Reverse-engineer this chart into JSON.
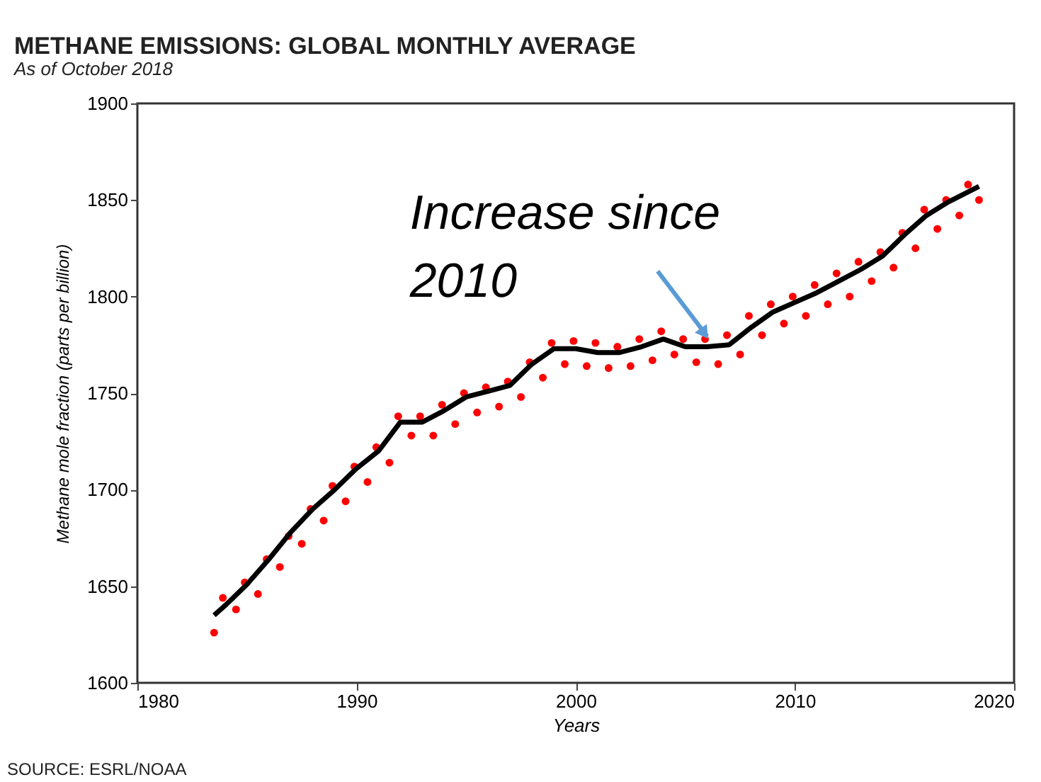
{
  "chart_data": {
    "type": "line",
    "title": "METHANE EMISSIONS: GLOBAL MONTHLY AVERAGE",
    "subtitle": "As of October 2018",
    "xlabel": "Years",
    "ylabel": "Methane mole fraction (parts per billion)",
    "xlim": [
      1980,
      2020
    ],
    "xticks": [
      1980,
      1990,
      2000,
      2010,
      2020
    ],
    "ylim": [
      1600,
      1900
    ],
    "yticks": [
      1600,
      1650,
      1700,
      1750,
      1800,
      1850,
      1900
    ],
    "grid": false,
    "annotations": [
      {
        "text": "Increase since 2010",
        "x": 2006,
        "y": 1775
      },
      "SOURCE: ESRL/NOAA"
    ],
    "series": [
      {
        "type": "scatter",
        "color": "#ff0000",
        "marker": "circle",
        "x": [
          1983.5,
          1983.9,
          1984.5,
          1984.9,
          1985.5,
          1985.9,
          1986.5,
          1986.9,
          1987.5,
          1987.9,
          1988.5,
          1988.9,
          1989.5,
          1989.9,
          1990.5,
          1990.9,
          1991.5,
          1991.9,
          1992.5,
          1992.9,
          1993.5,
          1993.9,
          1994.5,
          1994.9,
          1995.5,
          1995.9,
          1996.5,
          1996.9,
          1997.5,
          1997.9,
          1998.5,
          1998.9,
          1999.5,
          1999.9,
          2000.5,
          2000.9,
          2001.5,
          2001.9,
          2002.5,
          2002.9,
          2003.5,
          2003.9,
          2004.5,
          2004.9,
          2005.5,
          2005.9,
          2006.5,
          2006.9,
          2007.5,
          2007.9,
          2008.5,
          2008.9,
          2009.5,
          2009.9,
          2010.5,
          2010.9,
          2011.5,
          2011.9,
          2012.5,
          2012.9,
          2013.5,
          2013.9,
          2014.5,
          2014.9,
          2015.5,
          2015.9,
          2016.5,
          2016.9,
          2017.5,
          2017.9,
          2018.4
        ],
        "values": [
          1626,
          1644,
          1638,
          1652,
          1646,
          1664,
          1660,
          1676,
          1672,
          1690,
          1684,
          1702,
          1694,
          1712,
          1704,
          1722,
          1714,
          1738,
          1728,
          1738,
          1728,
          1744,
          1734,
          1750,
          1740,
          1753,
          1743,
          1756,
          1748,
          1766,
          1758,
          1776,
          1765,
          1777,
          1764,
          1776,
          1763,
          1774,
          1764,
          1778,
          1767,
          1782,
          1770,
          1778,
          1766,
          1778,
          1765,
          1780,
          1770,
          1790,
          1780,
          1796,
          1786,
          1800,
          1790,
          1806,
          1796,
          1812,
          1800,
          1818,
          1808,
          1823,
          1815,
          1833,
          1825,
          1845,
          1835,
          1850,
          1842,
          1858,
          1850
        ]
      },
      {
        "type": "line",
        "color": "#000000",
        "line_style": "solid",
        "x": [
          1983.5,
          1984,
          1985,
          1986,
          1987,
          1988,
          1989,
          1990,
          1991,
          1992,
          1993,
          1994,
          1995,
          1996,
          1997,
          1998,
          1999,
          2000,
          2001,
          2002,
          2003,
          2004,
          2005,
          2006,
          2007,
          2008,
          2009,
          2010,
          2011,
          2012,
          2013,
          2014,
          2015,
          2016,
          2017,
          2018.4
        ],
        "values": [
          1635,
          1640,
          1651,
          1664,
          1678,
          1690,
          1700,
          1711,
          1720,
          1735,
          1735,
          1741,
          1748,
          1751,
          1754,
          1765,
          1773,
          1773,
          1771,
          1771,
          1774,
          1778,
          1774,
          1774,
          1775,
          1784,
          1792,
          1797,
          1802,
          1808,
          1814,
          1821,
          1832,
          1842,
          1849,
          1857
        ]
      }
    ]
  }
}
